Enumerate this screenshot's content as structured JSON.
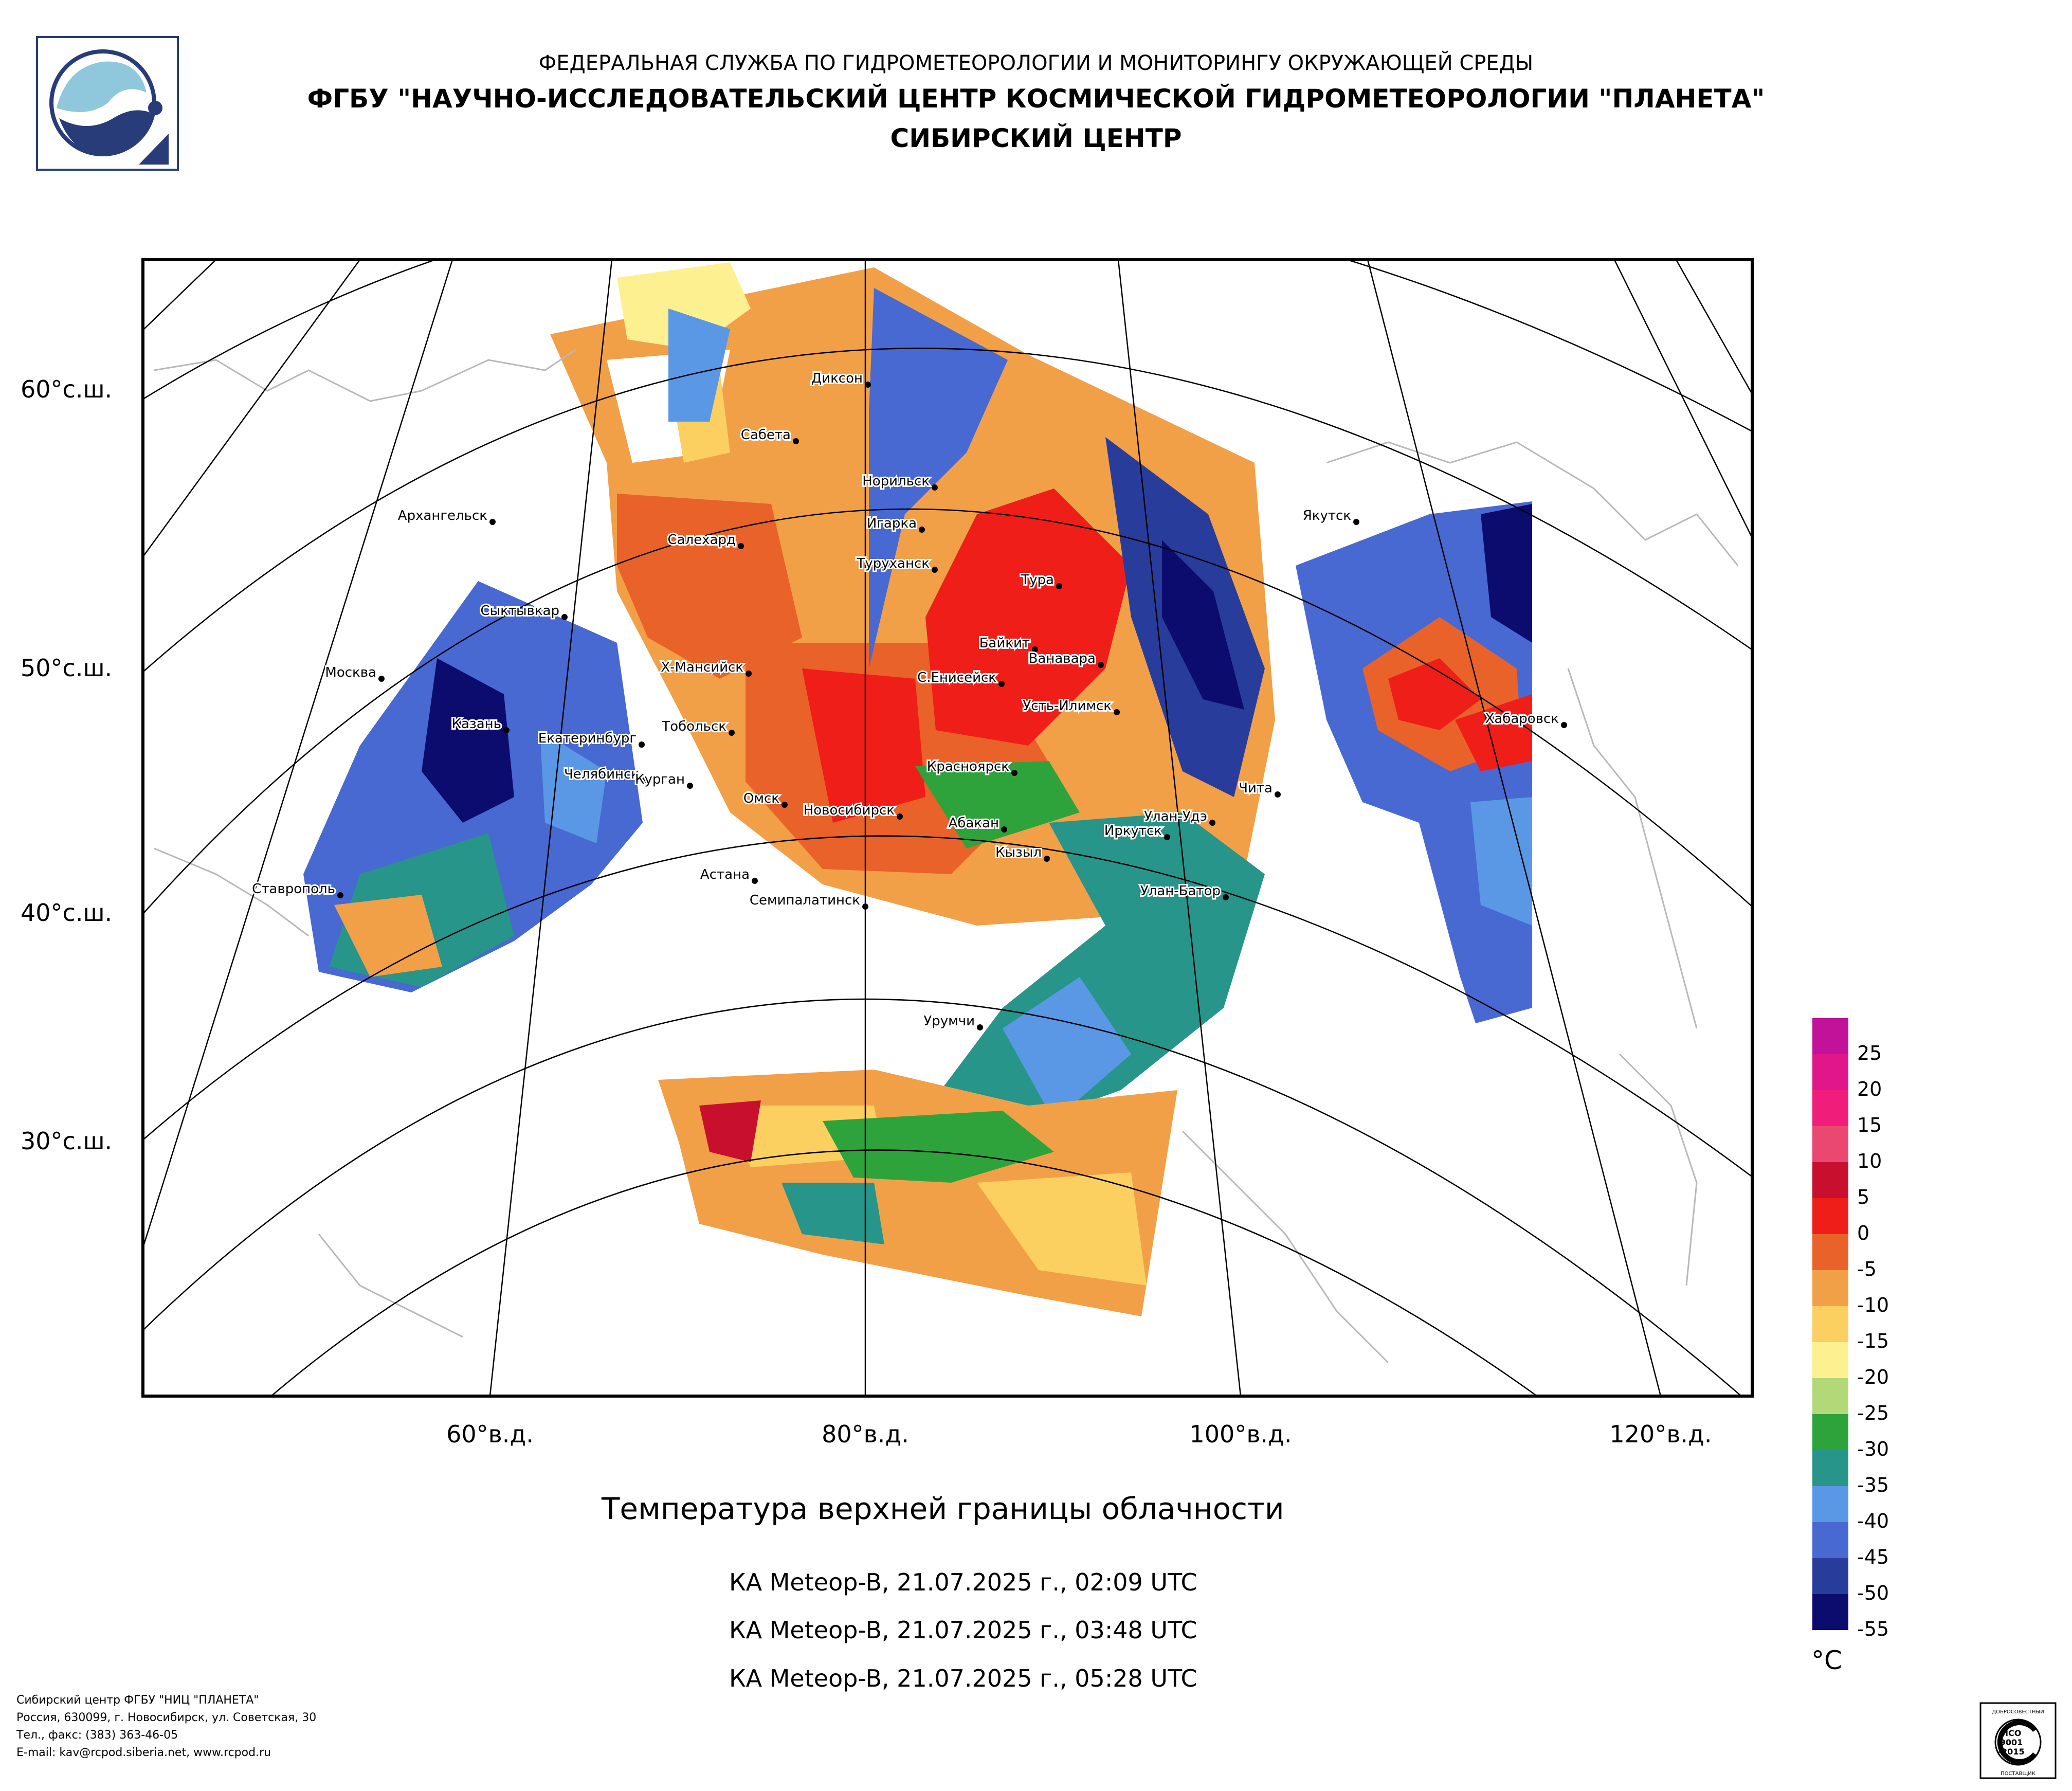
{
  "header": {
    "line1": "ФЕДЕРАЛЬНАЯ СЛУЖБА ПО ГИДРОМЕТЕОРОЛОГИИ И МОНИТОРИНГУ ОКРУЖАЮЩЕЙ СРЕДЫ",
    "line2": "ФГБУ \"НАУЧНО-ИССЛЕДОВАТЕЛЬСКИЙ ЦЕНТР КОСМИЧЕСКОЙ ГИДРОМЕТЕОРОЛОГИИ \"ПЛАНЕТА\"",
    "line3": "СИБИРСКИЙ ЦЕНТР"
  },
  "map": {
    "lat_labels": [
      "60°с.ш.",
      "50°с.ш.",
      "40°с.ш.",
      "30°с.ш."
    ],
    "lon_labels": [
      "60°в.д.",
      "80°в.д.",
      "100°в.д.",
      "120°в.д."
    ],
    "cities": [
      "Диксон",
      "Сабета",
      "Норильск",
      "Игарка",
      "Салехард",
      "Туруханск",
      "Архангельск",
      "Якутск",
      "Тура",
      "Сыктывкар",
      "Байкит",
      "Ванавара",
      "Москва",
      "Х-Мансийск",
      "С.Енисейск",
      "Усть-Илимск",
      "Хабаровск",
      "Казань",
      "Тобольск",
      "Екатеринбург",
      "Челябинск",
      "Курган",
      "Красноярск",
      "Чита",
      "Омск",
      "Новосибирск",
      "Абакан",
      "Улан-Удэ",
      "Иркутск",
      "Кызыл",
      "Астана",
      "Ставрополь",
      "Улан-Батор",
      "Семипалатинск",
      "Урумчи"
    ]
  },
  "title": "Температура верхней границы облачности",
  "passes": [
    "КА Meteop-B, 21.07.2025 г., 02:09 UTC",
    "КА Meteop-B, 21.07.2025 г., 03:48 UTC",
    "КА Meteop-B, 21.07.2025 г., 05:28 UTC"
  ],
  "legend": {
    "unit": "°C",
    "ticks": [
      "25",
      "20",
      "15",
      "10",
      "5",
      "0",
      "-5",
      "-10",
      "-15",
      "-20",
      "-25",
      "-30",
      "-35",
      "-40",
      "-45",
      "-50",
      "-55"
    ],
    "colors": [
      "#c2129a",
      "#e0168a",
      "#f01e7a",
      "#ea4870",
      "#c8102e",
      "#f01e18",
      "#e8622a",
      "#f2a048",
      "#fbd060",
      "#fdf090",
      "#b2d878",
      "#2ea33c",
      "#27958a",
      "#5a98e6",
      "#4868d2",
      "#283c9c",
      "#0c0c6e"
    ]
  },
  "footer": [
    "Сибирский центр ФГБУ \"НИЦ \"ПЛАНЕТА\"",
    "Россия, 630099, г. Новосибирск, ул. Советская, 30",
    "Тел., факс: (383) 363-46-05",
    "E-mail: kav@rcpod.siberia.net, www.rcpod.ru"
  ],
  "cert": {
    "top": "ДОБРОСОВЕСТНЫЙ",
    "l1": "ИСО",
    "l2": "9001",
    "l3": "-2015",
    "bottom": "ПОСТАВЩИК"
  }
}
